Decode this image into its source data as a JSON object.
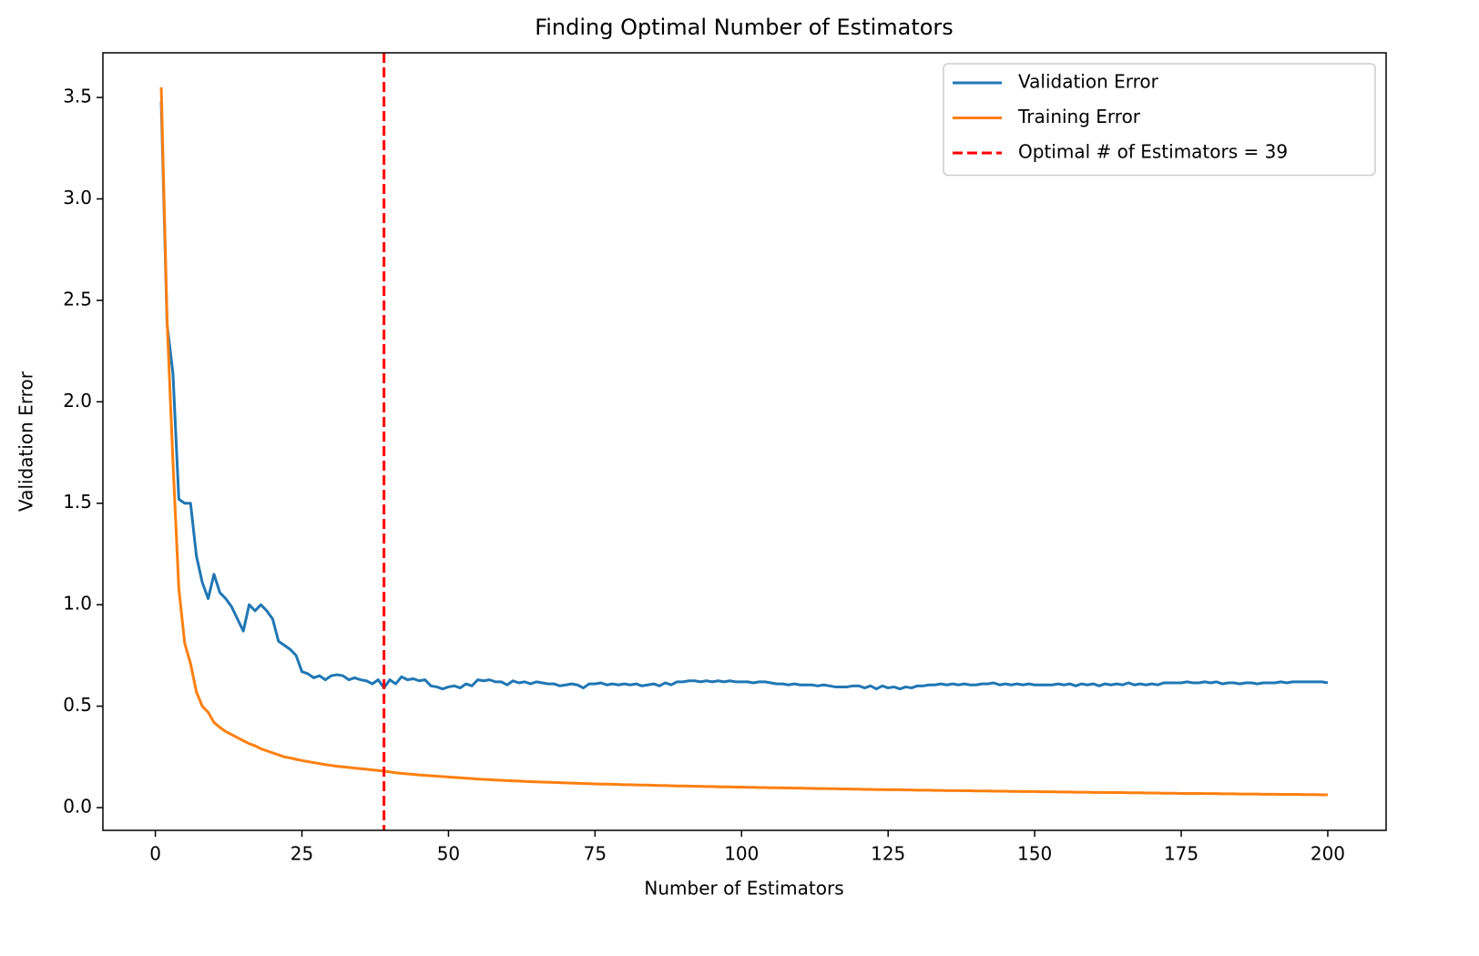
{
  "chart_data": {
    "type": "line",
    "title": "Finding Optimal Number of Estimators",
    "xlabel": "Number of Estimators",
    "ylabel": "Validation Error",
    "x": [
      1,
      2,
      3,
      4,
      5,
      6,
      7,
      8,
      9,
      10,
      11,
      12,
      13,
      14,
      15,
      16,
      17,
      18,
      19,
      20,
      21,
      22,
      23,
      24,
      25,
      26,
      27,
      28,
      29,
      30,
      31,
      32,
      33,
      34,
      35,
      36,
      37,
      38,
      39,
      40,
      41,
      42,
      43,
      44,
      45,
      46,
      47,
      48,
      49,
      50,
      51,
      52,
      53,
      54,
      55,
      56,
      57,
      58,
      59,
      60,
      61,
      62,
      63,
      64,
      65,
      66,
      67,
      68,
      69,
      70,
      71,
      72,
      73,
      74,
      75,
      76,
      77,
      78,
      79,
      80,
      81,
      82,
      83,
      84,
      85,
      86,
      87,
      88,
      89,
      90,
      91,
      92,
      93,
      94,
      95,
      96,
      97,
      98,
      99,
      100,
      101,
      102,
      103,
      104,
      105,
      106,
      107,
      108,
      109,
      110,
      111,
      112,
      113,
      114,
      115,
      116,
      117,
      118,
      119,
      120,
      121,
      122,
      123,
      124,
      125,
      126,
      127,
      128,
      129,
      130,
      131,
      132,
      133,
      134,
      135,
      136,
      137,
      138,
      139,
      140,
      141,
      142,
      143,
      144,
      145,
      146,
      147,
      148,
      149,
      150,
      151,
      152,
      153,
      154,
      155,
      156,
      157,
      158,
      159,
      160,
      161,
      162,
      163,
      164,
      165,
      166,
      167,
      168,
      169,
      170,
      171,
      172,
      173,
      174,
      175,
      176,
      177,
      178,
      179,
      180,
      181,
      182,
      183,
      184,
      185,
      186,
      187,
      188,
      189,
      190,
      191,
      192,
      193,
      194,
      195,
      196,
      197,
      198,
      199,
      200
    ],
    "series": [
      {
        "name": "Validation Error",
        "color": "#1f77b4",
        "values": [
          3.48,
          2.38,
          2.14,
          1.52,
          1.5,
          1.5,
          1.24,
          1.11,
          1.03,
          1.15,
          1.06,
          1.03,
          0.99,
          0.93,
          0.87,
          1.0,
          0.97,
          1.0,
          0.97,
          0.93,
          0.82,
          0.8,
          0.78,
          0.75,
          0.67,
          0.66,
          0.64,
          0.65,
          0.63,
          0.65,
          0.655,
          0.65,
          0.63,
          0.64,
          0.63,
          0.625,
          0.61,
          0.63,
          0.59,
          0.63,
          0.61,
          0.645,
          0.63,
          0.635,
          0.625,
          0.63,
          0.6,
          0.595,
          0.585,
          0.595,
          0.6,
          0.59,
          0.61,
          0.6,
          0.63,
          0.625,
          0.63,
          0.62,
          0.62,
          0.605,
          0.625,
          0.615,
          0.62,
          0.61,
          0.62,
          0.615,
          0.61,
          0.61,
          0.6,
          0.605,
          0.61,
          0.605,
          0.59,
          0.61,
          0.61,
          0.615,
          0.605,
          0.61,
          0.605,
          0.61,
          0.605,
          0.61,
          0.6,
          0.605,
          0.61,
          0.6,
          0.615,
          0.605,
          0.62,
          0.62,
          0.625,
          0.625,
          0.62,
          0.625,
          0.62,
          0.625,
          0.62,
          0.625,
          0.62,
          0.62,
          0.62,
          0.615,
          0.62,
          0.62,
          0.615,
          0.61,
          0.61,
          0.605,
          0.61,
          0.605,
          0.605,
          0.605,
          0.6,
          0.605,
          0.6,
          0.595,
          0.595,
          0.595,
          0.6,
          0.6,
          0.59,
          0.6,
          0.585,
          0.6,
          0.59,
          0.595,
          0.585,
          0.595,
          0.59,
          0.6,
          0.6,
          0.605,
          0.605,
          0.61,
          0.605,
          0.61,
          0.605,
          0.61,
          0.605,
          0.605,
          0.61,
          0.61,
          0.615,
          0.605,
          0.61,
          0.605,
          0.61,
          0.605,
          0.61,
          0.605,
          0.605,
          0.605,
          0.605,
          0.61,
          0.605,
          0.61,
          0.6,
          0.61,
          0.605,
          0.61,
          0.6,
          0.61,
          0.605,
          0.61,
          0.605,
          0.615,
          0.605,
          0.61,
          0.605,
          0.61,
          0.605,
          0.615,
          0.615,
          0.615,
          0.615,
          0.62,
          0.615,
          0.615,
          0.62,
          0.615,
          0.62,
          0.61,
          0.615,
          0.615,
          0.61,
          0.615,
          0.615,
          0.61,
          0.615,
          0.615,
          0.615,
          0.62,
          0.615,
          0.62,
          0.62,
          0.62,
          0.62,
          0.62,
          0.62,
          0.615
        ]
      },
      {
        "name": "Training Error",
        "color": "#ff7f0e",
        "values": [
          3.55,
          2.4,
          1.7,
          1.08,
          0.81,
          0.71,
          0.57,
          0.5,
          0.47,
          0.42,
          0.395,
          0.375,
          0.36,
          0.345,
          0.33,
          0.315,
          0.305,
          0.29,
          0.28,
          0.27,
          0.26,
          0.25,
          0.245,
          0.238,
          0.232,
          0.227,
          0.222,
          0.217,
          0.212,
          0.208,
          0.204,
          0.201,
          0.198,
          0.195,
          0.192,
          0.189,
          0.186,
          0.183,
          0.18,
          0.176,
          0.172,
          0.169,
          0.166,
          0.164,
          0.161,
          0.159,
          0.157,
          0.155,
          0.153,
          0.151,
          0.149,
          0.147,
          0.145,
          0.143,
          0.141,
          0.139,
          0.138,
          0.136,
          0.135,
          0.133,
          0.132,
          0.131,
          0.129,
          0.128,
          0.127,
          0.126,
          0.125,
          0.124,
          0.123,
          0.122,
          0.121,
          0.12,
          0.119,
          0.118,
          0.117,
          0.116,
          0.116,
          0.115,
          0.114,
          0.113,
          0.113,
          0.112,
          0.111,
          0.111,
          0.11,
          0.109,
          0.109,
          0.108,
          0.107,
          0.107,
          0.106,
          0.105,
          0.105,
          0.104,
          0.104,
          0.103,
          0.102,
          0.102,
          0.101,
          0.101,
          0.1,
          0.1,
          0.099,
          0.099,
          0.098,
          0.098,
          0.097,
          0.097,
          0.096,
          0.096,
          0.095,
          0.095,
          0.094,
          0.094,
          0.093,
          0.093,
          0.092,
          0.092,
          0.091,
          0.091,
          0.09,
          0.09,
          0.089,
          0.089,
          0.088,
          0.088,
          0.088,
          0.087,
          0.087,
          0.086,
          0.086,
          0.086,
          0.085,
          0.085,
          0.084,
          0.084,
          0.084,
          0.083,
          0.083,
          0.082,
          0.082,
          0.082,
          0.081,
          0.081,
          0.081,
          0.08,
          0.08,
          0.079,
          0.079,
          0.079,
          0.078,
          0.078,
          0.078,
          0.077,
          0.077,
          0.077,
          0.076,
          0.076,
          0.076,
          0.075,
          0.075,
          0.075,
          0.074,
          0.074,
          0.074,
          0.073,
          0.073,
          0.073,
          0.072,
          0.072,
          0.072,
          0.071,
          0.071,
          0.071,
          0.07,
          0.07,
          0.07,
          0.07,
          0.069,
          0.069,
          0.069,
          0.068,
          0.068,
          0.068,
          0.067,
          0.067,
          0.067,
          0.067,
          0.066,
          0.066,
          0.066,
          0.065,
          0.065,
          0.065,
          0.065,
          0.064,
          0.064,
          0.064,
          0.063,
          0.063
        ]
      }
    ],
    "vline": {
      "x": 39,
      "name": "Optimal # of Estimators = 39",
      "color": "#ff0000"
    },
    "xlim": [
      -8.95,
      209.95
    ],
    "ylim": [
      -0.112,
      3.72
    ],
    "xticks": [
      0,
      25,
      50,
      75,
      100,
      125,
      150,
      175,
      200
    ],
    "yticks": [
      {
        "value": 0,
        "label": "0.0"
      },
      0.5,
      {
        "value": 1,
        "label": "1.0"
      },
      1.5,
      {
        "value": 2,
        "label": "2.0"
      },
      2.5,
      {
        "value": 3,
        "label": "3.0"
      },
      3.5
    ],
    "legend": "upper right"
  }
}
